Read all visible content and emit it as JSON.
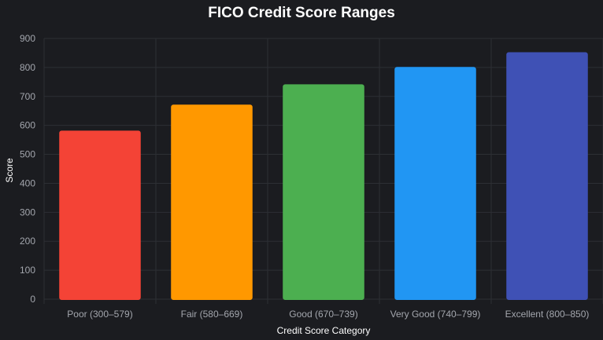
{
  "chart_data": {
    "type": "bar",
    "title": "FICO Credit Score Ranges",
    "xlabel": "Credit Score Category",
    "ylabel": "Score",
    "categories": [
      "Poor (300–579)",
      "Fair (580–669)",
      "Good (670–739)",
      "Very Good (740–799)",
      "Excellent (800–850)"
    ],
    "values": [
      579,
      669,
      739,
      799,
      850
    ],
    "colors": [
      "#f44336",
      "#ff9800",
      "#4caf50",
      "#2196f3",
      "#3f51b5"
    ],
    "ylim": [
      0,
      900
    ],
    "yticks": [
      0,
      100,
      200,
      300,
      400,
      500,
      600,
      700,
      800,
      900
    ],
    "grid": true,
    "legend": "none"
  }
}
